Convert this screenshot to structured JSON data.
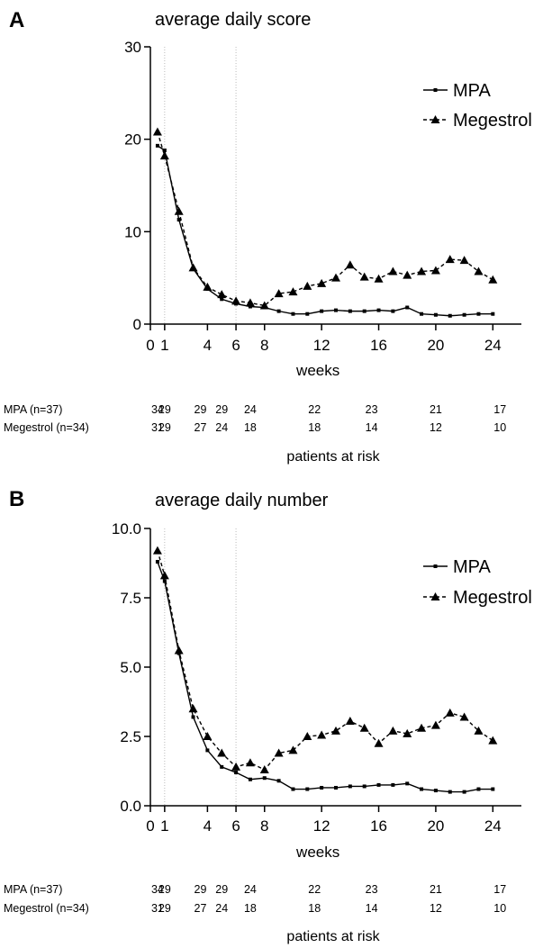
{
  "chart_data": [
    {
      "type": "line",
      "panel_label": "A",
      "title": "average daily score",
      "xlabel": "weeks",
      "ylabel": "",
      "xlim": [
        0,
        26
      ],
      "ylim": [
        0,
        30
      ],
      "x_ticks": [
        0,
        1,
        4,
        6,
        8,
        12,
        16,
        20,
        24
      ],
      "y_ticks": [
        0,
        10,
        20,
        30
      ],
      "y_tick_labels": [
        "0",
        "10",
        "20",
        "30"
      ],
      "reference_lines_x": [
        1,
        6
      ],
      "legend_position": "top-right",
      "series": [
        {
          "name": "MPA",
          "line_style": "solid",
          "marker": "square",
          "x": [
            0.5,
            1,
            2,
            3,
            4,
            5,
            6,
            7,
            8,
            9,
            10,
            11,
            12,
            13,
            14,
            15,
            16,
            17,
            18,
            19,
            20,
            21,
            22,
            23,
            24
          ],
          "values": [
            19.3,
            18.8,
            11.3,
            6.0,
            3.8,
            2.7,
            2.2,
            1.9,
            1.8,
            1.4,
            1.1,
            1.1,
            1.4,
            1.5,
            1.4,
            1.4,
            1.5,
            1.4,
            1.8,
            1.1,
            1.0,
            0.9,
            1.0,
            1.1,
            1.1
          ]
        },
        {
          "name": "Megestrol",
          "line_style": "dashed",
          "marker": "triangle",
          "x": [
            0.5,
            1,
            2,
            3,
            4,
            5,
            6,
            7,
            8,
            9,
            10,
            11,
            12,
            13,
            14,
            15,
            16,
            17,
            18,
            19,
            20,
            21,
            22,
            23,
            24
          ],
          "values": [
            20.8,
            18.2,
            12.2,
            6.1,
            4.0,
            3.2,
            2.5,
            2.3,
            2.0,
            3.3,
            3.5,
            4.1,
            4.4,
            5.0,
            6.4,
            5.1,
            4.9,
            5.7,
            5.3,
            5.7,
            5.8,
            7.0,
            6.9,
            5.7,
            4.8
          ]
        }
      ],
      "patients_at_risk": {
        "title": "patients at risk",
        "x": [
          0.5,
          1,
          4,
          6,
          8,
          12,
          16,
          20,
          24
        ],
        "rows": [
          {
            "label": "MPA (n=37)",
            "values": [
              "34",
              "29",
              "29",
              "29",
              "24",
              "22",
              "23",
              "21",
              "17"
            ],
            "x": [
              0.5,
              1,
              3.5,
              5,
              7,
              11.5,
              15.5,
              20,
              24.5
            ]
          },
          {
            "label": "Megestrol  (n=34)",
            "values": [
              "31",
              "29",
              "27",
              "24",
              "18",
              "18",
              "14",
              "12",
              "10"
            ],
            "x": [
              0.5,
              1,
              3.5,
              5,
              7,
              11.5,
              15.5,
              20,
              24.5
            ]
          }
        ]
      }
    },
    {
      "type": "line",
      "panel_label": "B",
      "title": "average daily number",
      "xlabel": "weeks",
      "ylabel": "",
      "xlim": [
        0,
        26
      ],
      "ylim": [
        0,
        10
      ],
      "x_ticks": [
        0,
        1,
        4,
        6,
        8,
        12,
        16,
        20,
        24
      ],
      "y_ticks": [
        0,
        2.5,
        5,
        7.5,
        10
      ],
      "y_tick_labels": [
        "0.0",
        "2.5",
        "5.0",
        "7.5",
        "10.0"
      ],
      "reference_lines_x": [
        1,
        6
      ],
      "legend_position": "top-right",
      "series": [
        {
          "name": "MPA",
          "line_style": "solid",
          "marker": "square",
          "x": [
            0.5,
            1,
            2,
            3,
            4,
            5,
            6,
            7,
            8,
            9,
            10,
            11,
            12,
            13,
            14,
            15,
            16,
            17,
            18,
            19,
            20,
            21,
            22,
            23,
            24
          ],
          "values": [
            8.8,
            8.1,
            5.5,
            3.2,
            2.0,
            1.4,
            1.2,
            0.95,
            1.0,
            0.9,
            0.6,
            0.6,
            0.65,
            0.65,
            0.7,
            0.7,
            0.75,
            0.75,
            0.8,
            0.6,
            0.55,
            0.5,
            0.5,
            0.6,
            0.6
          ]
        },
        {
          "name": "Megestrol",
          "line_style": "dashed",
          "marker": "triangle",
          "x": [
            0.5,
            1,
            2,
            3,
            4,
            5,
            6,
            7,
            8,
            9,
            10,
            11,
            12,
            13,
            14,
            15,
            16,
            17,
            18,
            19,
            20,
            21,
            22,
            23,
            24
          ],
          "values": [
            9.2,
            8.3,
            5.6,
            3.5,
            2.5,
            1.9,
            1.4,
            1.55,
            1.3,
            1.9,
            2.0,
            2.5,
            2.55,
            2.7,
            3.05,
            2.8,
            2.25,
            2.7,
            2.6,
            2.8,
            2.9,
            3.35,
            3.2,
            2.7,
            2.35
          ]
        }
      ],
      "patients_at_risk": {
        "title": "patients at risk",
        "x": [
          0.5,
          1,
          4,
          6,
          8,
          12,
          16,
          20,
          24
        ],
        "rows": [
          {
            "label": "MPA (n=37)",
            "values": [
              "34",
              "29",
              "29",
              "29",
              "24",
              "22",
              "23",
              "21",
              "17"
            ],
            "x": [
              0.5,
              1,
              3.5,
              5,
              7,
              11.5,
              15.5,
              20,
              24.5
            ]
          },
          {
            "label": "Megestrol  (n=34)",
            "values": [
              "31",
              "29",
              "27",
              "24",
              "18",
              "18",
              "14",
              "12",
              "10"
            ],
            "x": [
              0.5,
              1,
              3.5,
              5,
              7,
              11.5,
              15.5,
              20,
              24.5
            ]
          }
        ]
      }
    }
  ]
}
